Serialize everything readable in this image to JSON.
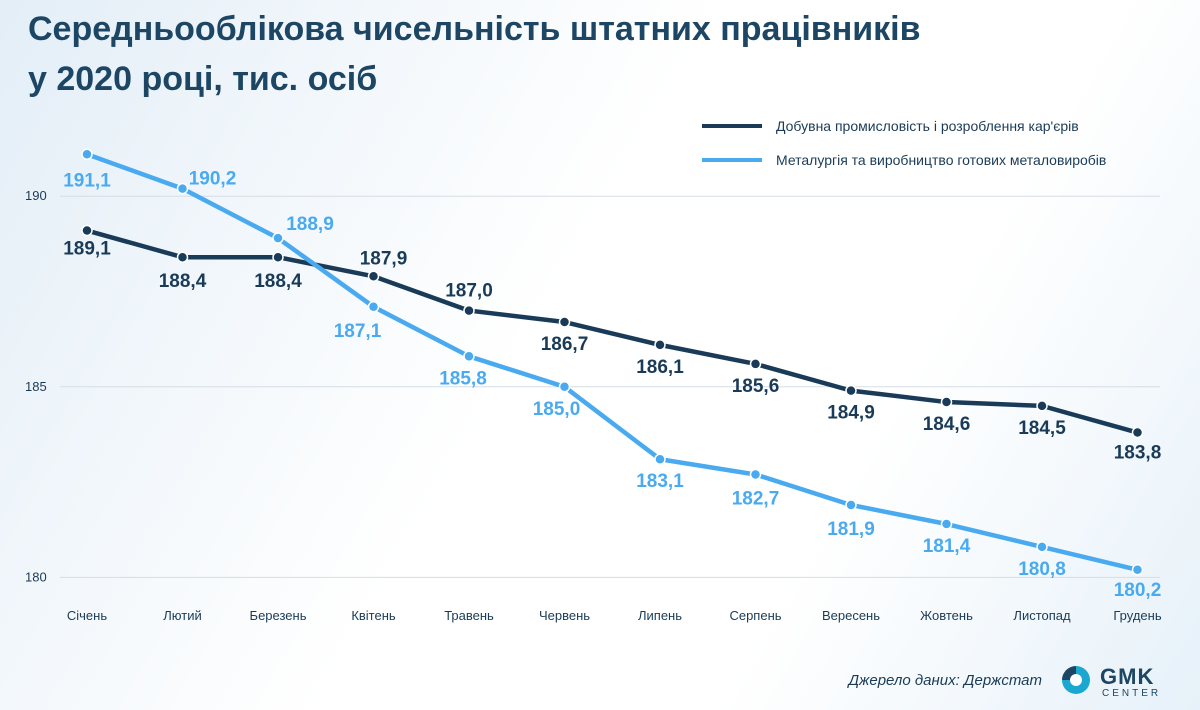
{
  "title_lines": [
    "Середньооблікова чисельність штатних працівників",
    "у 2020 році, тис. осіб"
  ],
  "source": "Джерело даних: Держстат",
  "logo": {
    "name": "GMK",
    "sub": "CENTER"
  },
  "colors": {
    "series1": "#1a3b57",
    "series2": "#4aaaf0",
    "grid": "#d5dde5",
    "title": "#1c4664"
  },
  "chart_data": {
    "type": "line",
    "title": "Середньооблікова чисельність штатних працівників у 2020 році, тис. осіб",
    "xlabel": "",
    "ylabel": "",
    "categories": [
      "Січень",
      "Лютий",
      "Березень",
      "Квітень",
      "Травень",
      "Червень",
      "Липень",
      "Серпень",
      "Вересень",
      "Жовтень",
      "Листопад",
      "Грудень"
    ],
    "y_ticks": [
      190,
      185,
      180
    ],
    "ylim": [
      179.8,
      192
    ],
    "grid": true,
    "legend_position": "top-right",
    "series": [
      {
        "name": "Добувна промисловість і розроблення кар'єрів",
        "values": [
          189.1,
          188.4,
          188.4,
          187.9,
          187.0,
          186.7,
          186.1,
          185.6,
          184.9,
          184.6,
          184.5,
          183.8
        ],
        "labels": [
          "189,1",
          "188,4",
          "188,4",
          "187,9",
          "187,0",
          "186,7",
          "186,1",
          "185,6",
          "184,9",
          "184,6",
          "184,5",
          "183,8"
        ]
      },
      {
        "name": "Металургія та виробництво готових металовиробів",
        "values": [
          191.1,
          190.2,
          188.9,
          187.1,
          185.8,
          185.0,
          183.1,
          182.7,
          181.9,
          181.4,
          180.8,
          180.2
        ],
        "labels": [
          "191,1",
          "190,2",
          "188,9",
          "187,1",
          "185,8",
          "185,0",
          "183,1",
          "182,7",
          "181,9",
          "181,4",
          "180,8",
          "180,2"
        ]
      }
    ]
  }
}
